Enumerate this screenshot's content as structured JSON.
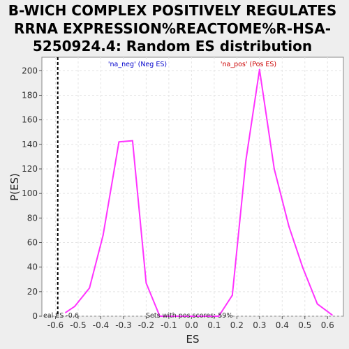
{
  "chart_data": {
    "type": "line",
    "title_lines": [
      "B-WICH COMPLEX POSITIVELY REGULATES",
      "RRNA EXPRESSION%REACTOME%R-HSA-",
      "5250924.4: Random ES distribution"
    ],
    "xlabel": "ES",
    "ylabel": "P(ES)",
    "xlim": [
      -0.66,
      0.67
    ],
    "ylim": [
      0,
      211
    ],
    "x_ticks": [
      -0.6,
      -0.5,
      -0.4,
      -0.3,
      -0.2,
      -0.1,
      0.0,
      0.1,
      0.2,
      0.3,
      0.4,
      0.5,
      0.6
    ],
    "x_tick_labels": [
      "-0.6",
      "-0.5",
      "-0.4",
      "-0.3",
      "-0.2",
      "-0.1",
      "0.0",
      "0.1",
      "0.2",
      "0.3",
      "0.4",
      "0.5",
      "0.6"
    ],
    "y_ticks": [
      0,
      20,
      40,
      60,
      80,
      100,
      120,
      140,
      160,
      180,
      200
    ],
    "y_tick_labels": [
      "0",
      "20",
      "40",
      "60",
      "80",
      "100",
      "120",
      "140",
      "160",
      "180",
      "200"
    ],
    "grid": true,
    "series": [
      {
        "color": "#ff33ff",
        "x": [
          -0.555,
          -0.515,
          -0.45,
          -0.39,
          -0.32,
          -0.26,
          -0.2,
          -0.14,
          -0.1,
          0.0,
          0.12,
          0.18,
          0.24,
          0.3,
          0.365,
          0.43,
          0.49,
          0.555,
          0.62
        ],
        "y": [
          3,
          8,
          23,
          66,
          142,
          143,
          27,
          0,
          0,
          0,
          0,
          17,
          127,
          201,
          120,
          73,
          40,
          10,
          1
        ]
      }
    ],
    "marker_line": {
      "x": -0.59,
      "label": "eal ES -0.6",
      "color": "#000000"
    },
    "annotations": {
      "neg_label": "'na_neg' (Neg ES)",
      "neg_color": "#0000cc",
      "pos_label": "'na_pos' (Pos ES)",
      "pos_color": "#cc0000",
      "bottom_note": "Sets with pos scores: 59%"
    }
  }
}
